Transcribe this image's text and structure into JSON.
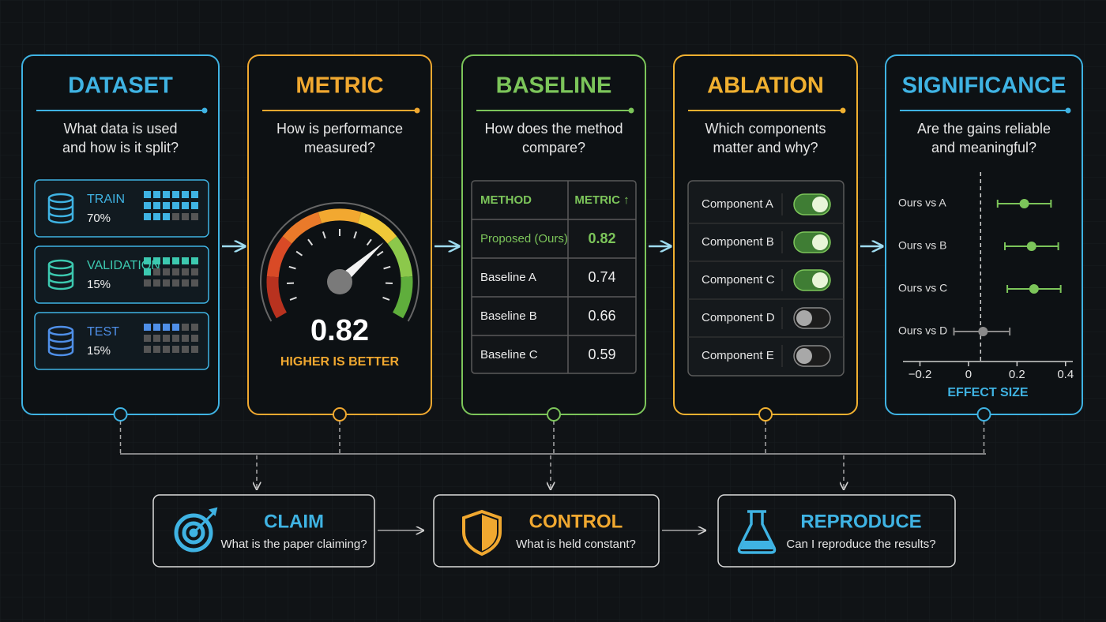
{
  "cards": [
    {
      "title": "DATASET",
      "color": "#3fb3e3",
      "question": [
        "What data is used",
        "and how is it split?"
      ],
      "splits": [
        {
          "name": "TRAIN",
          "share": "70%",
          "color": "#3fb3e3"
        },
        {
          "name": "VALIDATION",
          "share": "15%",
          "color": "#3cc9b0"
        },
        {
          "name": "TEST",
          "share": "15%",
          "color": "#4f8fe8"
        }
      ]
    },
    {
      "title": "METRIC",
      "color": "#f0a830",
      "question": [
        "How is performance",
        "measured?"
      ],
      "score": "0.82",
      "caption": "HIGHER IS BETTER"
    },
    {
      "title": "BASELINE",
      "color": "#7cc55a",
      "question": [
        "How does the method",
        "compare?"
      ],
      "header": [
        "METHOD",
        "METRIC ↑"
      ],
      "rows": [
        [
          "Proposed (Ours)",
          "0.82"
        ],
        [
          "Baseline A",
          "0.74"
        ],
        [
          "Baseline B",
          "0.66"
        ],
        [
          "Baseline C",
          "0.59"
        ]
      ]
    },
    {
      "title": "ABLATION",
      "color": "#f0b030",
      "question": [
        "Which components",
        "matter and why?"
      ],
      "components": [
        {
          "name": "Component A",
          "enabled": true
        },
        {
          "name": "Component B",
          "enabled": true
        },
        {
          "name": "Component C",
          "enabled": true
        },
        {
          "name": "Component D",
          "enabled": false
        },
        {
          "name": "Component E",
          "enabled": false
        }
      ]
    },
    {
      "title": "SIGNIFICANCE",
      "color": "#3fb3e3",
      "question": [
        "Are the gains reliable",
        "and meaningful?"
      ],
      "plot": {
        "type": "errorbar",
        "categories": [
          "Ours vs A",
          "Ours vs B",
          "Ours vs C",
          "Ours vs D"
        ],
        "values": [
          0.23,
          0.26,
          0.27,
          0.06
        ],
        "low": [
          0.12,
          0.15,
          0.16,
          -0.06
        ],
        "high": [
          0.34,
          0.37,
          0.38,
          0.17
        ],
        "colors": [
          "#7cc55a",
          "#7cc55a",
          "#7cc55a",
          "#8a8a8a"
        ],
        "reference": 0.05,
        "xlim": [
          -0.27,
          0.43
        ],
        "xticks": [
          {
            "value": -0.2,
            "label": "−0.2"
          },
          0,
          0.2,
          0.4
        ],
        "x_label": "EFFECT SIZE"
      }
    }
  ],
  "steps": [
    {
      "title": "CLAIM",
      "question": "What is the paper claiming?",
      "color": "#3fb3e3"
    },
    {
      "title": "CONTROL",
      "question": "What is held constant?",
      "color": "#f0a830"
    },
    {
      "title": "REPRODUCE",
      "question": "Can I reproduce the results?",
      "color": "#3fb3e3"
    }
  ]
}
